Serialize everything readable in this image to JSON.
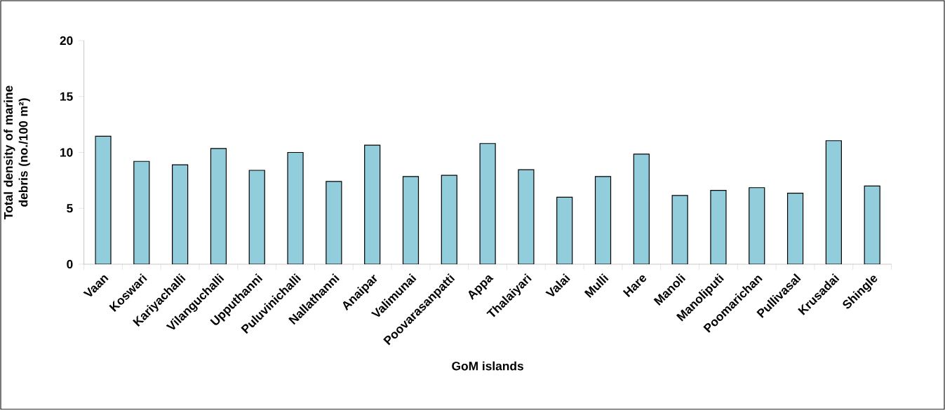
{
  "chart_data": {
    "type": "bar",
    "categories": [
      "Vaan",
      "Koswari",
      "Kariyachalli",
      "Vilanguchalli",
      "Upputhanni",
      "Puluvinichalli",
      "Nallathanni",
      "Anaipar",
      "Valimunai",
      "Poovarasanpatti",
      "Appa",
      "Thalaiyari",
      "Valai",
      "Mulli",
      "Hare",
      "Manoli",
      "Manoliputi",
      "Poomarichan",
      "Pullivasal",
      "Krusadai",
      "Shingle"
    ],
    "values": [
      11.45,
      9.2,
      8.9,
      10.35,
      8.4,
      10.0,
      7.4,
      10.65,
      7.85,
      7.95,
      10.8,
      8.45,
      6.0,
      7.85,
      9.85,
      6.15,
      6.6,
      6.85,
      6.35,
      11.05,
      7.0
    ],
    "color": "#92cddc",
    "xlabel": "GoM islands",
    "ylabel": "Total density of  marine debris (no./100 m²)",
    "ylim": [
      0,
      20
    ],
    "yticks": [
      0,
      5,
      10,
      15,
      20
    ]
  }
}
